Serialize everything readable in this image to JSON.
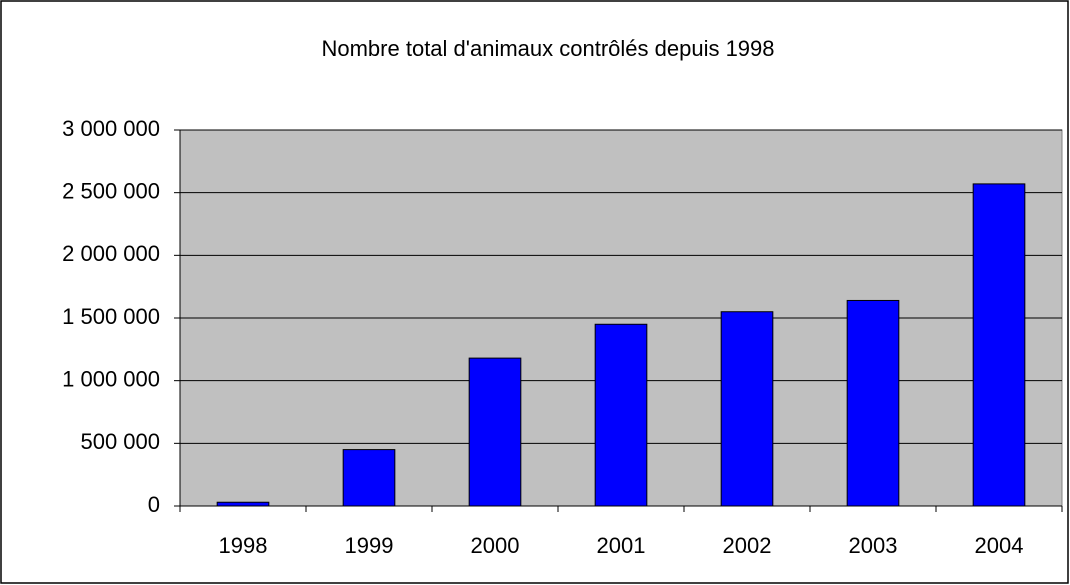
{
  "chart_data": {
    "type": "bar",
    "title": "Nombre total d'animaux contrôlés depuis 1998",
    "categories": [
      "1998",
      "1999",
      "2000",
      "2001",
      "2002",
      "2003",
      "2004"
    ],
    "values": [
      30000,
      450000,
      1180000,
      1450000,
      1550000,
      1640000,
      2570000
    ],
    "color": "#0000ff",
    "ylim": [
      0,
      3000000
    ],
    "yticks": [
      0,
      {
        "value": 500000,
        "label": "500 000"
      },
      {
        "value": 1000000,
        "label": "1 000 000"
      },
      {
        "value": 1500000,
        "label": "1 500 000"
      },
      {
        "value": 2000000,
        "label": "2 000 000"
      },
      {
        "value": 2500000,
        "label": "2 500 000"
      },
      {
        "value": 3000000,
        "label": "3 000 000"
      }
    ],
    "grid": true
  }
}
